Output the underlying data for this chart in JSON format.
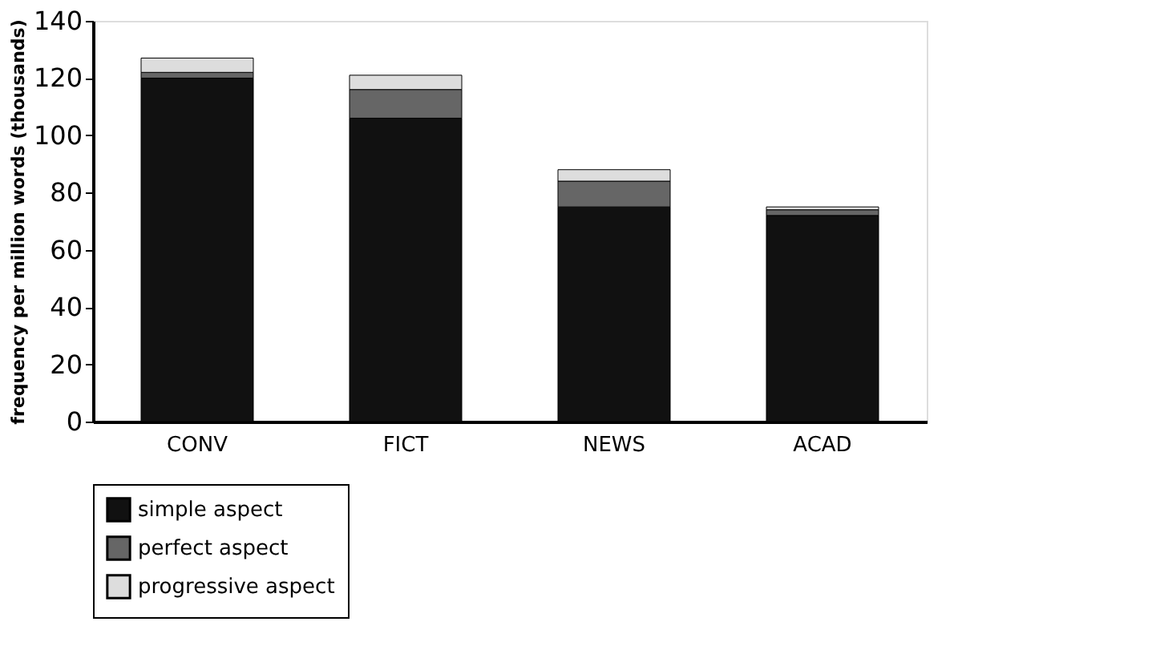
{
  "chart_data": {
    "type": "bar",
    "stacked": true,
    "ylabel": "frequency per million words (thousands)",
    "categories": [
      "CONV",
      "FICT",
      "NEWS",
      "ACAD"
    ],
    "series": [
      {
        "name": "simple aspect",
        "color": "#111111",
        "values": [
          120,
          106,
          75,
          72
        ]
      },
      {
        "name": "perfect aspect",
        "color": "#666666",
        "values": [
          2,
          10,
          9,
          2
        ]
      },
      {
        "name": "progressive aspect",
        "color": "#dddddd",
        "values": [
          5,
          5,
          4,
          1
        ]
      }
    ],
    "ylim": [
      0,
      140
    ],
    "yticks": [
      0,
      20,
      40,
      60,
      80,
      100,
      120,
      140
    ],
    "grid": false,
    "legend": "bottom"
  }
}
